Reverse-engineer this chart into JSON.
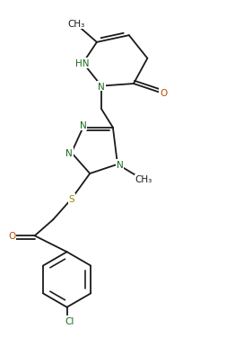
{
  "figure_width": 2.62,
  "figure_height": 4.06,
  "dpi": 100,
  "bg_color": "#ffffff",
  "bond_color": "#1a1a1a",
  "atom_colors": {
    "N": "#1a6b1a",
    "O": "#b84c00",
    "S": "#9b8a00",
    "Cl": "#1a6b1a",
    "C": "#1a1a1a"
  },
  "font_size": 7.5,
  "bond_width": 1.3,
  "xlim": [
    0,
    10
  ],
  "ylim": [
    0,
    15.5
  ]
}
